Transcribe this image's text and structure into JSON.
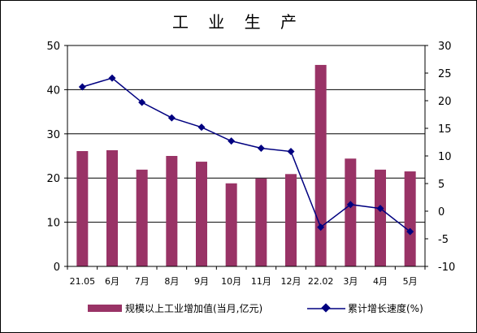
{
  "chart_data": {
    "type": "bar+line",
    "title": "工 业 生 产",
    "categories": [
      "21.05",
      "6月",
      "7月",
      "8月",
      "9月",
      "10月",
      "11月",
      "12月",
      "22.02",
      "3月",
      "4月",
      "5月"
    ],
    "series": [
      {
        "name": "规模以上工业增加值(当月,亿元)",
        "type": "bar",
        "axis": "left",
        "color": "#993366",
        "values": [
          26.1,
          26.3,
          21.9,
          25.0,
          23.7,
          18.8,
          19.9,
          20.9,
          45.6,
          24.4,
          21.9,
          21.5
        ]
      },
      {
        "name": "累计增长速度(%)",
        "type": "line",
        "axis": "right",
        "color": "#000080",
        "values": [
          22.5,
          24.1,
          19.7,
          16.9,
          15.2,
          12.7,
          11.4,
          10.8,
          -2.9,
          1.2,
          0.5,
          -3.7
        ]
      }
    ],
    "y_left": {
      "min": 0,
      "max": 50,
      "ticks": [
        0,
        10,
        20,
        30,
        40,
        50
      ]
    },
    "y_right": {
      "min": -10,
      "max": 30,
      "ticks": [
        -10,
        -5,
        0,
        5,
        10,
        15,
        20,
        25,
        30
      ]
    },
    "grid": true,
    "legend_position": "bottom"
  }
}
